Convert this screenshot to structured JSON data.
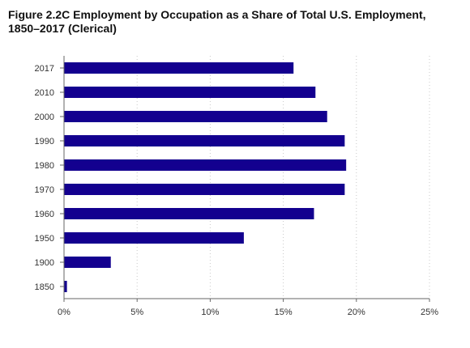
{
  "chart_data": {
    "type": "bar",
    "orientation": "horizontal",
    "title": "Figure 2.2C Employment by Occupation as a Share of Total U.S. Employment, 1850–2017 (Clerical)",
    "xlabel": "",
    "ylabel": "",
    "categories": [
      "2017",
      "2010",
      "2000",
      "1990",
      "1980",
      "1970",
      "1960",
      "1950",
      "1900",
      "1850"
    ],
    "values": [
      15.7,
      17.2,
      18.0,
      19.2,
      19.3,
      19.2,
      17.1,
      12.3,
      3.2,
      0.2
    ],
    "xlim": [
      0,
      25
    ],
    "xticks": [
      "0%",
      "5%",
      "10%",
      "15%",
      "20%",
      "25%"
    ],
    "xtick_values": [
      0,
      5,
      10,
      15,
      20,
      25
    ],
    "bar_color": "#13008f",
    "grid": "vertical dotted",
    "legend": "none"
  }
}
